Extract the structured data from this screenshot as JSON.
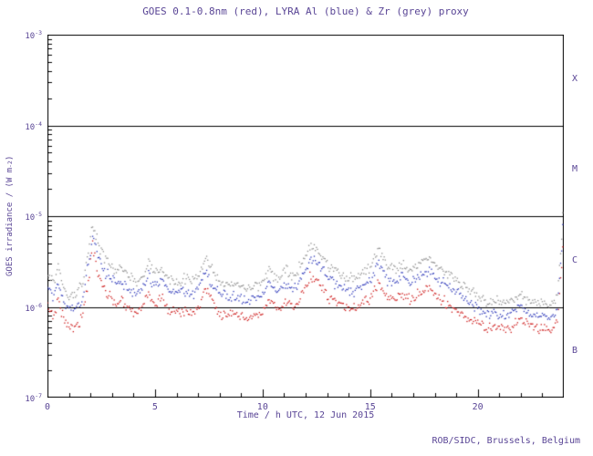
{
  "chart_data": {
    "type": "line",
    "title": "GOES 0.1-0.8nm (red), LYRA Al (blue) & Zr (grey) proxy",
    "xlabel": "Time / h UTC, 12 Jun 2015",
    "ylabel_parts": {
      "pre": "GOES irradiance / (W m",
      "exp": "-2",
      "post": ")"
    },
    "footer": "ROB/SIDC, Brussels, Belgium",
    "x_range": [
      0,
      24
    ],
    "y_range_exp": [
      -7,
      -3
    ],
    "x_major_ticks": [
      0,
      5,
      10,
      15,
      20
    ],
    "x_minor_step": 1,
    "y_ticks": [
      {
        "base": "10",
        "exp": "-3",
        "e": -3
      },
      {
        "base": "10",
        "exp": "-4",
        "e": -4
      },
      {
        "base": "10",
        "exp": "-5",
        "e": -5
      },
      {
        "base": "10",
        "exp": "-6",
        "e": -6
      },
      {
        "base": "10",
        "exp": "-7",
        "e": -7
      }
    ],
    "hlines_exp": [
      -4,
      -5,
      -6
    ],
    "flare_classes": [
      {
        "label": "X",
        "band_exp": [
          -4,
          -3
        ]
      },
      {
        "label": "M",
        "band_exp": [
          -5,
          -4
        ]
      },
      {
        "label": "C",
        "band_exp": [
          -6,
          -5
        ]
      },
      {
        "label": "B",
        "band_exp": [
          -7,
          -6
        ]
      }
    ],
    "colors": {
      "text": "#5a4696",
      "axis": "#000000",
      "background": "#ffffff"
    },
    "legend_position": "in-title",
    "grid": "hlines-only",
    "value_scale": 1e-06,
    "x": [
      0.0,
      0.3,
      0.5,
      0.8,
      1.0,
      1.3,
      1.6,
      1.9,
      2.1,
      2.3,
      2.6,
      2.9,
      3.2,
      3.5,
      3.8,
      4.1,
      4.4,
      4.7,
      5.0,
      5.3,
      5.6,
      6.0,
      6.4,
      6.8,
      7.1,
      7.35,
      7.6,
      8.0,
      8.4,
      8.8,
      9.2,
      9.6,
      10.0,
      10.3,
      10.7,
      11.1,
      11.5,
      11.9,
      12.25,
      12.6,
      13.0,
      13.4,
      13.8,
      14.2,
      14.6,
      15.0,
      15.4,
      15.8,
      16.2,
      16.5,
      16.9,
      17.3,
      17.7,
      18.1,
      18.5,
      19.0,
      19.5,
      20.0,
      20.5,
      21.0,
      21.5,
      22.0,
      22.5,
      23.0,
      23.4,
      23.7,
      23.9,
      24.0
    ],
    "series": [
      {
        "name": "GOES 0.1-0.8nm",
        "color": "#cc1515",
        "values": [
          1.0,
          0.8,
          1.2,
          0.7,
          0.6,
          0.62,
          0.75,
          1.8,
          5.0,
          2.6,
          1.6,
          1.3,
          1.1,
          1.2,
          0.95,
          0.85,
          1.0,
          1.45,
          1.05,
          1.25,
          0.95,
          0.85,
          0.9,
          0.85,
          1.1,
          1.6,
          1.2,
          0.85,
          0.8,
          0.8,
          0.72,
          0.78,
          0.88,
          1.2,
          0.9,
          1.1,
          1.0,
          1.45,
          2.2,
          1.9,
          1.35,
          1.1,
          1.0,
          0.95,
          1.05,
          1.2,
          2.0,
          1.2,
          1.2,
          1.4,
          1.2,
          1.4,
          1.6,
          1.3,
          1.1,
          0.9,
          0.75,
          0.65,
          0.6,
          0.58,
          0.58,
          0.72,
          0.6,
          0.6,
          0.55,
          0.7,
          2.8,
          9.0
        ]
      },
      {
        "name": "LYRA Al proxy",
        "color": "#2a35b8",
        "values": [
          1.6,
          1.3,
          1.9,
          1.1,
          0.95,
          1.0,
          1.2,
          2.9,
          5.8,
          4.0,
          2.6,
          2.1,
          1.8,
          1.9,
          1.5,
          1.4,
          1.6,
          2.3,
          1.7,
          2.0,
          1.5,
          1.4,
          1.45,
          1.4,
          1.8,
          2.6,
          1.9,
          1.4,
          1.3,
          1.3,
          1.15,
          1.25,
          1.4,
          1.9,
          1.45,
          1.8,
          1.6,
          2.3,
          3.5,
          3.0,
          2.2,
          1.8,
          1.6,
          1.5,
          1.65,
          1.9,
          3.2,
          1.95,
          1.9,
          2.2,
          1.9,
          2.2,
          2.5,
          2.1,
          1.8,
          1.45,
          1.15,
          0.95,
          0.85,
          0.8,
          0.8,
          1.0,
          0.8,
          0.8,
          0.75,
          0.95,
          4.2,
          14.0
        ]
      },
      {
        "name": "LYRA Zr proxy",
        "color": "#8d8d8d",
        "values": [
          2.2,
          1.8,
          2.7,
          1.5,
          1.3,
          1.4,
          1.7,
          4.0,
          8.0,
          5.5,
          3.6,
          2.9,
          2.5,
          2.7,
          2.1,
          1.9,
          2.2,
          3.2,
          2.4,
          2.8,
          2.1,
          1.9,
          2.0,
          1.9,
          2.5,
          3.6,
          2.6,
          1.9,
          1.8,
          1.8,
          1.6,
          1.7,
          1.9,
          2.6,
          2.0,
          2.5,
          2.2,
          3.2,
          4.8,
          4.2,
          3.0,
          2.5,
          2.2,
          2.1,
          2.3,
          2.6,
          4.4,
          2.7,
          2.6,
          3.0,
          2.6,
          3.0,
          3.5,
          2.9,
          2.5,
          2.0,
          1.6,
          1.3,
          1.15,
          1.1,
          1.1,
          1.4,
          1.1,
          1.1,
          1.0,
          1.3,
          6.0,
          20.0
        ]
      }
    ]
  }
}
